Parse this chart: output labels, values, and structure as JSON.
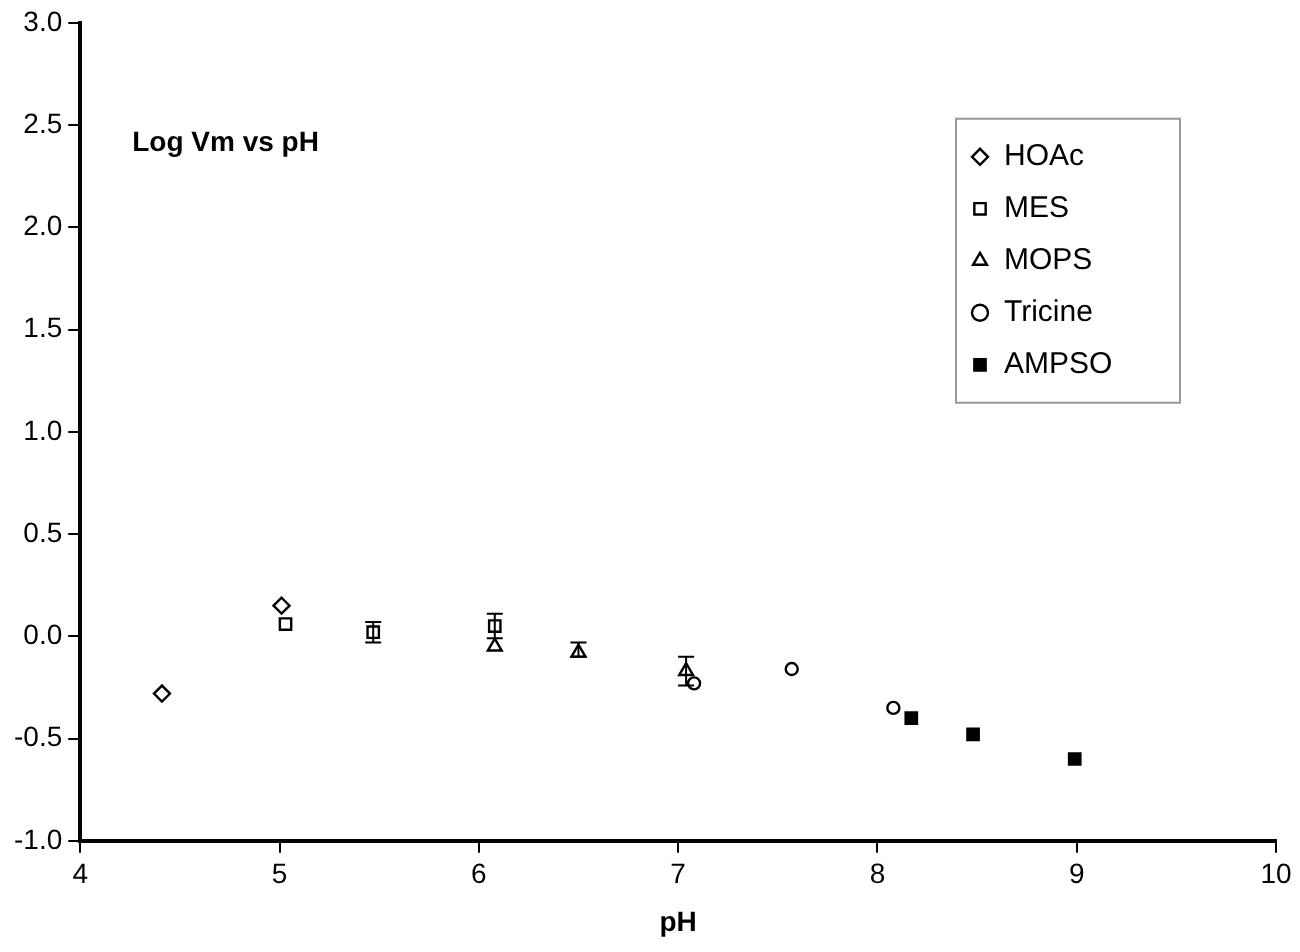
{
  "chart_data": {
    "type": "scatter",
    "title": "Log Vm vs pH",
    "xlabel": "pH",
    "xlim": [
      4,
      10
    ],
    "xticks": [
      4,
      5,
      6,
      7,
      8,
      9,
      10
    ],
    "ylim": [
      -1,
      3
    ],
    "yticks": [
      {
        "value": -1,
        "label": "-1.0"
      },
      {
        "value": -0.5,
        "label": "-0.5"
      },
      {
        "value": 0,
        "label": "0.0"
      },
      {
        "value": 0.5,
        "label": "0.5"
      },
      {
        "value": 1,
        "label": "1.0"
      },
      {
        "value": 1.5,
        "label": "1.5"
      },
      {
        "value": 2,
        "label": "2.0"
      },
      {
        "value": 2.5,
        "label": "2.5"
      },
      {
        "value": 3,
        "label": "3.0"
      }
    ],
    "grid": false,
    "legend": "top right",
    "series": [
      {
        "name": "HOAc",
        "color": "#000000",
        "marker": "diamond",
        "x": [
          4.41,
          5.01
        ],
        "values": [
          -0.28,
          0.15
        ]
      },
      {
        "name": "MES",
        "color": "#000000",
        "marker": "square",
        "x": [
          5.03,
          5.47,
          6.08
        ],
        "values": [
          0.06,
          0.02,
          0.05
        ],
        "errors": [
          null,
          0.05,
          0.06
        ]
      },
      {
        "name": "MOPS",
        "color": "#000000",
        "marker": "triangle",
        "x": [
          6.08,
          6.5,
          7.04
        ],
        "values": [
          -0.05,
          -0.08,
          -0.17
        ],
        "errors": [
          null,
          [
            -0.1,
            -0.03
          ],
          0.07
        ]
      },
      {
        "name": "Tricine",
        "color": "#000000",
        "marker": "circle",
        "x": [
          7.08,
          7.57,
          8.08
        ],
        "values": [
          -0.23,
          -0.16,
          -0.35
        ]
      },
      {
        "name": "AMPSO",
        "color": "#000000",
        "marker": "square",
        "x": [
          8.17,
          8.48,
          8.99
        ],
        "values": [
          -0.4,
          -0.48,
          -0.6
        ]
      }
    ]
  }
}
